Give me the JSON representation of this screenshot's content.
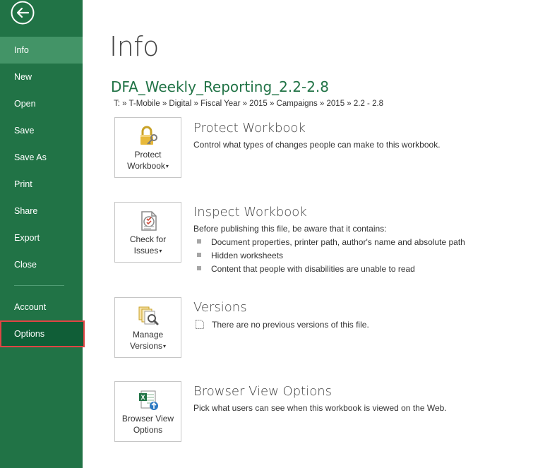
{
  "sidebar": {
    "back_label": "Back",
    "items": [
      {
        "label": "Info"
      },
      {
        "label": "New"
      },
      {
        "label": "Open"
      },
      {
        "label": "Save"
      },
      {
        "label": "Save As"
      },
      {
        "label": "Print"
      },
      {
        "label": "Share"
      },
      {
        "label": "Export"
      },
      {
        "label": "Close"
      }
    ],
    "account": "Account",
    "options": "Options"
  },
  "main": {
    "title": "Info",
    "file_name": "DFA_Weekly_Reporting_2.2-2.8",
    "file_path": "T: » T-Mobile » Digital » Fiscal Year » 2015 » Campaigns » 2015 » 2.2 - 2.8",
    "protect": {
      "tile_line1": "Protect",
      "tile_line2": "Workbook",
      "title": "Protect Workbook",
      "desc": "Control what types of changes people can make to this workbook.",
      "icon": "lock-key-icon"
    },
    "inspect": {
      "tile_line1": "Check for",
      "tile_line2": "Issues",
      "title": "Inspect Workbook",
      "desc": "Before publishing this file, be aware that it contains:",
      "bullets": [
        "Document properties, printer path, author's name and absolute path",
        "Hidden worksheets",
        "Content that people with disabilities are unable to read"
      ],
      "icon": "checklist-icon"
    },
    "versions": {
      "tile_line1": "Manage",
      "tile_line2": "Versions",
      "title": "Versions",
      "desc": "There are no previous versions of this file.",
      "icon": "magnifier-documents-icon"
    },
    "browser": {
      "tile_line1": "Browser View",
      "tile_line2": "Options",
      "title": "Browser View Options",
      "desc": "Pick what users can see when this workbook is viewed on the Web.",
      "icon": "excel-web-icon"
    }
  },
  "colors": {
    "sidebar": "#217346",
    "active": "#439467",
    "selected": "#105e37",
    "highlight_border": "#e04444",
    "accent_text": "#217346"
  }
}
